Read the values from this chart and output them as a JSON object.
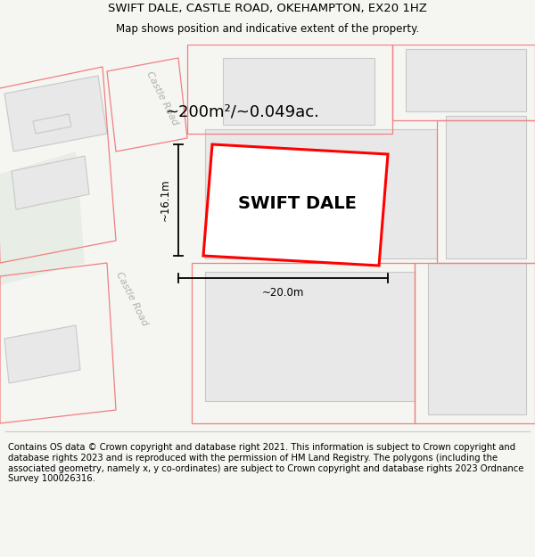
{
  "title": "SWIFT DALE, CASTLE ROAD, OKEHAMPTON, EX20 1HZ",
  "subtitle": "Map shows position and indicative extent of the property.",
  "footer": "Contains OS data © Crown copyright and database right 2021. This information is subject to Crown copyright and database rights 2023 and is reproduced with the permission of HM Land Registry. The polygons (including the associated geometry, namely x, y co-ordinates) are subject to Crown copyright and database rights 2023 Ordnance Survey 100026316.",
  "property_label": "SWIFT DALE",
  "area_label": "~200m²/~0.049ac.",
  "width_label": "~20.0m",
  "height_label": "~16.1m",
  "bg_color": "#f5f5f2",
  "map_bg": "#ffffff",
  "building_fill": "#e8e8e8",
  "building_outline": "#c8c8c8",
  "green_fill": "#e8ede6",
  "property_outline": "#ff0000",
  "property_fill": "#ffffff",
  "red_line_color": "#f08080",
  "title_fontsize": 9.5,
  "subtitle_fontsize": 8.5,
  "footer_fontsize": 7.2,
  "area_label_fontsize": 13,
  "property_label_fontsize": 14,
  "dim_fontsize": 8.5,
  "road_label_fontsize": 8,
  "road_label_color": "#b0b0b0"
}
